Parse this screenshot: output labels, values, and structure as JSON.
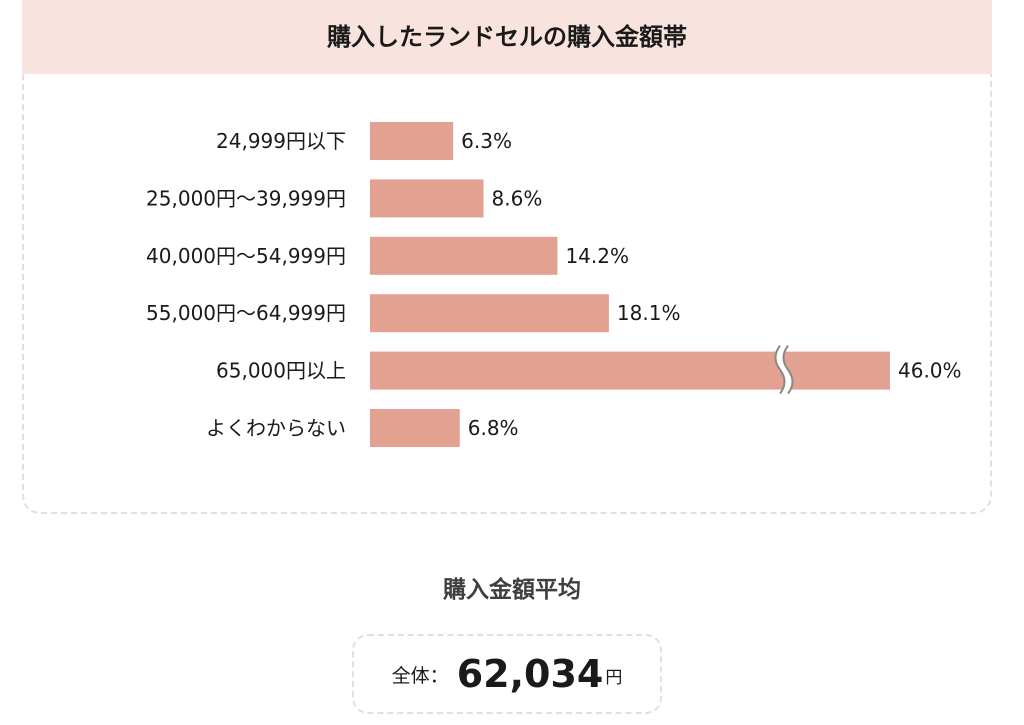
{
  "chart_data": {
    "type": "bar",
    "orientation": "horizontal",
    "title": "購入したランドセルの購入金額帯",
    "categories": [
      "24,999円以下",
      "25,000円〜39,999円",
      "40,000円〜54,999円",
      "55,000円〜64,999円",
      "65,000円以上",
      "よくわからない"
    ],
    "values": [
      6.3,
      8.6,
      14.2,
      18.1,
      46.0,
      6.8
    ],
    "value_labels": [
      "6.3%",
      "8.6%",
      "14.2%",
      "18.1%",
      "46.0%",
      "6.8%"
    ],
    "axis_break": {
      "category": "65,000円以上"
    },
    "bar_color": "#e3a191",
    "header_color": "#f8e3de"
  },
  "average": {
    "title": "購入金額平均",
    "label": "全体：",
    "value": "62,034",
    "unit": "円"
  }
}
